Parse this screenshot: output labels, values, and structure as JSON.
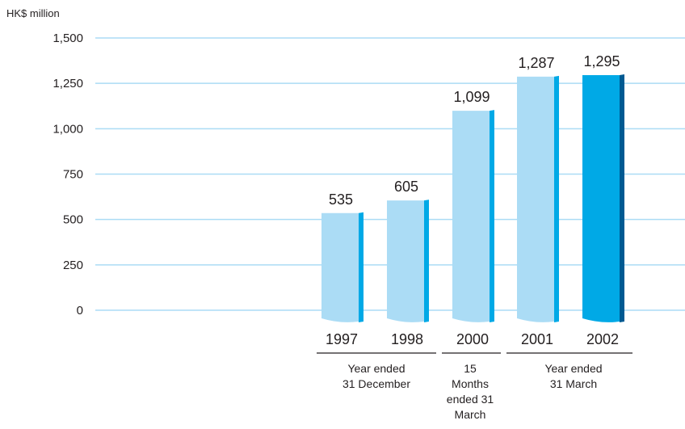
{
  "chart_data": {
    "type": "bar",
    "ylabel": "HK$ million",
    "ylim": [
      0,
      1500
    ],
    "yticks": [
      0,
      250,
      500,
      750,
      1000,
      1250,
      1500
    ],
    "ytick_labels": [
      "0",
      "250",
      "500",
      "750",
      "1,000",
      "1,250",
      "1,500"
    ],
    "grid": true,
    "categories": [
      "1997",
      "1998",
      "2000",
      "2001",
      "2002"
    ],
    "values": [
      535,
      605,
      1099,
      1287,
      1295
    ],
    "value_labels": [
      "535",
      "605",
      "1,099",
      "1,287",
      "1,295"
    ],
    "groups": [
      {
        "label": "Year ended 31 December",
        "lines": [
          "Year ended",
          "31 December"
        ],
        "categories": [
          "1997",
          "1998"
        ]
      },
      {
        "label": "15 Months ended 31 March",
        "lines": [
          "15",
          "Months",
          "ended 31",
          "March"
        ],
        "categories": [
          "2000"
        ]
      },
      {
        "label": "Year ended 31 March",
        "lines": [
          "Year ended",
          "31 March"
        ],
        "categories": [
          "2001",
          "2002"
        ]
      }
    ],
    "highlight_category": "2002",
    "colors": {
      "bar_face": "#abdcf5",
      "bar_side": "#00a9e6",
      "highlight_face": "#00a9e6",
      "highlight_side": "#005a92",
      "grid": "#abdcf5",
      "rule": "#231f20"
    }
  }
}
